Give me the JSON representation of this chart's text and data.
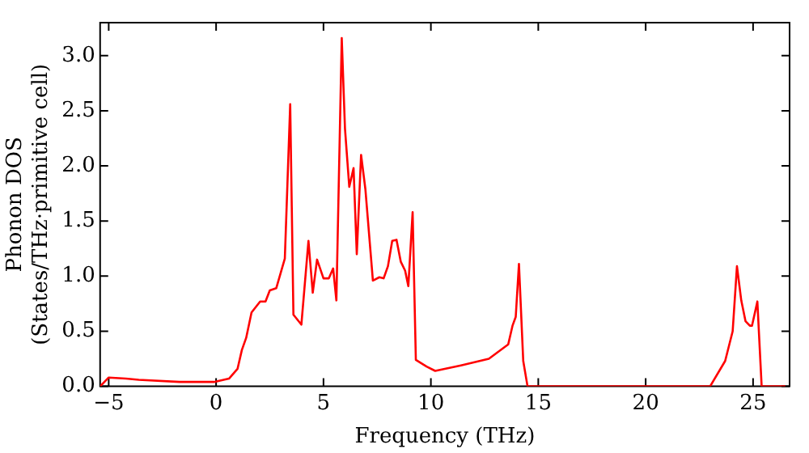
{
  "chart_data": {
    "type": "line",
    "xlabel": "Frequency (THz)",
    "ylabel": "Phonon DOS\n(States/THz·primitive cell)",
    "x": [
      -5.4,
      -5.0,
      -4.2,
      -3.6,
      -1.7,
      -0.1,
      0.6,
      1.0,
      1.2,
      1.4,
      1.65,
      2.05,
      2.3,
      2.5,
      2.8,
      3.2,
      3.45,
      3.6,
      3.97,
      4.3,
      4.5,
      4.7,
      5.0,
      5.25,
      5.45,
      5.6,
      5.85,
      6.0,
      6.2,
      6.4,
      6.55,
      6.75,
      6.95,
      7.3,
      7.6,
      7.8,
      8.0,
      8.2,
      8.4,
      8.6,
      8.8,
      8.95,
      9.15,
      9.3,
      9.8,
      10.2,
      11.4,
      12.7,
      13.6,
      13.8,
      13.95,
      14.1,
      14.3,
      14.5,
      23.0,
      23.7,
      24.05,
      24.25,
      24.45,
      24.65,
      24.85,
      24.95,
      25.2,
      25.4,
      26.5
    ],
    "series": [
      {
        "color": "#ff0000",
        "values": [
          0,
          0.08,
          0.07,
          0.06,
          0.04,
          0.04,
          0.07,
          0.16,
          0.33,
          0.44,
          0.67,
          0.77,
          0.77,
          0.87,
          0.89,
          1.16,
          2.56,
          0.65,
          0.56,
          1.32,
          0.85,
          1.15,
          0.98,
          0.98,
          1.07,
          0.78,
          3.16,
          2.34,
          1.81,
          1.98,
          1.2,
          2.1,
          1.79,
          0.96,
          0.99,
          0.98,
          1.09,
          1.32,
          1.33,
          1.13,
          1.05,
          0.91,
          1.58,
          0.24,
          0.18,
          0.14,
          0.19,
          0.25,
          0.38,
          0.55,
          0.63,
          1.11,
          0.23,
          0,
          0,
          0.23,
          0.5,
          1.09,
          0.78,
          0.59,
          0.55,
          0.55,
          0.77,
          0,
          0
        ]
      }
    ],
    "xlim": [
      -5.4,
      26.7
    ],
    "ylim": [
      0,
      3.3
    ],
    "xticks": [
      {
        "value": -5,
        "label": "−5"
      },
      0,
      5,
      10,
      15,
      20,
      25
    ],
    "yticks": [
      {
        "value": 0,
        "label": "0.0"
      },
      {
        "value": 0.5,
        "label": "0.5"
      },
      {
        "value": 1,
        "label": "1.0"
      },
      {
        "value": 1.5,
        "label": "1.5"
      },
      {
        "value": 2,
        "label": "2.0"
      },
      {
        "value": 2.5,
        "label": "2.5"
      },
      {
        "value": 3,
        "label": "3.0"
      }
    ],
    "grid": false,
    "legend": false,
    "marker": "none",
    "line_style": "solid"
  }
}
